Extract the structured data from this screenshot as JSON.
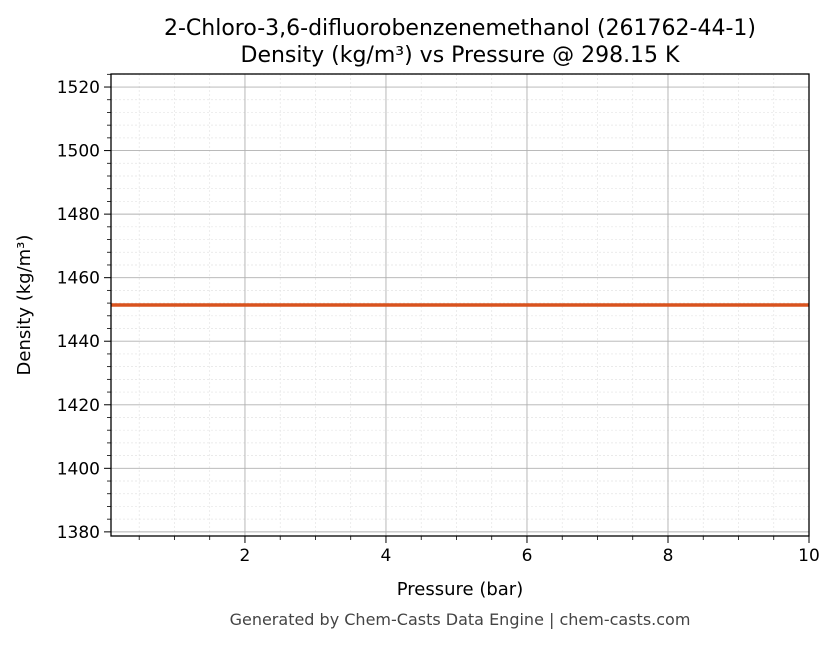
{
  "chart_data": {
    "type": "line",
    "title": "2-Chloro-3,6-difluorobenzenemethanol (261762-44-1)",
    "subtitle": "Density (kg/m³) vs Pressure @ 298.15 K",
    "xlabel": "Pressure (bar)",
    "ylabel": "Density (kg/m³)",
    "xlim": [
      0.1,
      10
    ],
    "ylim": [
      1378.7,
      1524.1
    ],
    "xticks": [
      2,
      4,
      6,
      8,
      10
    ],
    "yticks": [
      1380,
      1400,
      1420,
      1440,
      1460,
      1480,
      1500,
      1520
    ],
    "grid": true,
    "minor_grid": true,
    "series": [
      {
        "x": [
          0.1,
          10
        ],
        "y": [
          1451.4,
          1451.4
        ],
        "color": "#d9531e"
      }
    ]
  },
  "footer": "Generated by Chem-Casts Data Engine | chem-casts.com"
}
